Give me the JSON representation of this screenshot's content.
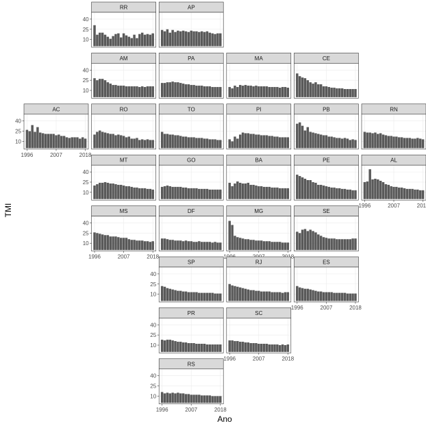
{
  "chart_data": {
    "type": "bar",
    "layout": "geo-facet grid of Brazilian states",
    "xlabel": "Ano",
    "ylabel": "TMI",
    "x_start": 1996,
    "x_end": 2018,
    "x_ticks": [
      "1996",
      "2007",
      "2018"
    ],
    "ylim": [
      0,
      48
    ],
    "y_ticks": [
      10,
      25,
      40
    ],
    "grid": true,
    "bar_color": "#595959",
    "strip_color": "#d9d9d9",
    "panels": [
      {
        "name": "RR",
        "row": 0,
        "col": 1,
        "values": [
          31,
          17,
          20,
          20,
          17,
          14,
          11,
          15,
          18,
          19,
          13,
          19,
          16,
          14,
          12,
          17,
          12,
          18,
          20,
          17,
          18,
          17,
          19
        ]
      },
      {
        "name": "AP",
        "row": 0,
        "col": 2,
        "values": [
          24,
          22,
          25,
          20,
          24,
          21,
          23,
          22,
          23,
          22,
          21,
          23,
          22,
          22,
          21,
          22,
          21,
          22,
          20,
          19,
          18,
          19,
          19
        ]
      },
      {
        "name": "AM",
        "row": 1,
        "col": 1,
        "values": [
          28,
          25,
          27,
          27,
          25,
          22,
          20,
          18,
          18,
          17,
          17,
          17,
          16,
          16,
          16,
          16,
          16,
          15,
          16,
          15,
          16,
          16,
          16
        ]
      },
      {
        "name": "PA",
        "row": 1,
        "col": 2,
        "values": [
          21,
          21,
          22,
          22,
          23,
          22,
          22,
          21,
          20,
          19,
          19,
          18,
          18,
          17,
          17,
          17,
          16,
          16,
          16,
          15,
          15,
          15,
          15
        ]
      },
      {
        "name": "MA",
        "row": 1,
        "col": 3,
        "values": [
          15,
          13,
          17,
          15,
          18,
          17,
          18,
          17,
          17,
          16,
          17,
          16,
          16,
          16,
          16,
          15,
          15,
          15,
          15,
          14,
          15,
          15,
          14
        ]
      },
      {
        "name": "CE",
        "row": 1,
        "col": 4,
        "values": [
          35,
          31,
          29,
          28,
          25,
          22,
          20,
          22,
          19,
          19,
          16,
          16,
          15,
          14,
          14,
          13,
          13,
          13,
          12,
          12,
          12,
          12,
          12
        ]
      },
      {
        "name": "AC",
        "row": 2,
        "col": 0,
        "values": [
          27,
          25,
          34,
          24,
          31,
          23,
          22,
          21,
          21,
          21,
          21,
          19,
          20,
          18,
          18,
          16,
          15,
          16,
          16,
          16,
          14,
          16,
          14
        ]
      },
      {
        "name": "RO",
        "row": 2,
        "col": 1,
        "values": [
          20,
          24,
          26,
          24,
          23,
          22,
          21,
          21,
          19,
          20,
          19,
          18,
          16,
          17,
          14,
          14,
          15,
          12,
          13,
          12,
          13,
          12,
          12
        ]
      },
      {
        "name": "TO",
        "row": 2,
        "col": 2,
        "values": [
          24,
          21,
          21,
          20,
          20,
          19,
          19,
          18,
          17,
          17,
          16,
          16,
          16,
          15,
          15,
          15,
          14,
          14,
          13,
          13,
          13,
          12,
          12
        ]
      },
      {
        "name": "PI",
        "row": 2,
        "col": 3,
        "values": [
          13,
          10,
          17,
          14,
          20,
          23,
          22,
          22,
          21,
          21,
          20,
          20,
          19,
          19,
          19,
          18,
          18,
          17,
          17,
          16,
          16,
          16,
          16
        ]
      },
      {
        "name": "PB",
        "row": 2,
        "col": 4,
        "values": [
          36,
          38,
          33,
          26,
          31,
          24,
          23,
          22,
          21,
          20,
          19,
          19,
          17,
          17,
          16,
          15,
          15,
          14,
          15,
          14,
          12,
          13,
          12
        ]
      },
      {
        "name": "RN",
        "row": 2,
        "col": 5,
        "values": [
          24,
          23,
          23,
          22,
          23,
          21,
          22,
          20,
          19,
          18,
          18,
          17,
          17,
          16,
          16,
          15,
          15,
          15,
          14,
          14,
          15,
          14,
          13
        ]
      },
      {
        "name": "MT",
        "row": 3,
        "col": 1,
        "values": [
          20,
          22,
          24,
          24,
          25,
          24,
          23,
          23,
          22,
          21,
          21,
          20,
          19,
          19,
          18,
          17,
          17,
          16,
          16,
          16,
          15,
          15,
          14
        ]
      },
      {
        "name": "GO",
        "row": 3,
        "col": 2,
        "values": [
          18,
          19,
          20,
          19,
          18,
          18,
          18,
          18,
          17,
          17,
          16,
          16,
          16,
          16,
          15,
          15,
          15,
          15,
          14,
          14,
          14,
          14,
          14
        ]
      },
      {
        "name": "BA",
        "row": 3,
        "col": 3,
        "values": [
          24,
          19,
          23,
          26,
          24,
          23,
          23,
          24,
          21,
          21,
          20,
          19,
          19,
          18,
          18,
          18,
          17,
          17,
          17,
          16,
          16,
          16,
          16
        ]
      },
      {
        "name": "PE",
        "row": 3,
        "col": 4,
        "values": [
          36,
          34,
          32,
          30,
          28,
          28,
          25,
          24,
          21,
          21,
          20,
          19,
          18,
          17,
          17,
          16,
          16,
          15,
          15,
          14,
          14,
          13,
          13
        ]
      },
      {
        "name": "AL",
        "row": 3,
        "col": 5,
        "values": [
          25,
          26,
          44,
          29,
          30,
          29,
          27,
          25,
          22,
          21,
          19,
          18,
          18,
          17,
          17,
          16,
          15,
          15,
          15,
          14,
          14,
          13,
          13
        ]
      },
      {
        "name": "MS",
        "row": 4,
        "col": 1,
        "values": [
          26,
          25,
          24,
          23,
          22,
          22,
          20,
          20,
          20,
          19,
          18,
          18,
          18,
          16,
          15,
          15,
          14,
          14,
          14,
          13,
          13,
          12,
          13
        ]
      },
      {
        "name": "DF",
        "row": 4,
        "col": 2,
        "values": [
          17,
          17,
          16,
          15,
          15,
          14,
          14,
          14,
          13,
          14,
          13,
          13,
          12,
          12,
          13,
          12,
          12,
          12,
          12,
          11,
          12,
          11,
          11
        ]
      },
      {
        "name": "MG",
        "row": 4,
        "col": 3,
        "values": [
          43,
          37,
          21,
          19,
          18,
          17,
          16,
          16,
          15,
          15,
          14,
          14,
          14,
          13,
          13,
          13,
          12,
          12,
          12,
          12,
          11,
          11,
          11
        ]
      },
      {
        "name": "SE",
        "row": 4,
        "col": 4,
        "values": [
          27,
          25,
          30,
          31,
          28,
          30,
          28,
          26,
          23,
          21,
          19,
          18,
          17,
          17,
          17,
          16,
          16,
          16,
          16,
          16,
          16,
          17,
          17
        ]
      },
      {
        "name": "SP",
        "row": 5,
        "col": 2,
        "values": [
          22,
          21,
          19,
          18,
          17,
          16,
          15,
          15,
          14,
          14,
          13,
          13,
          13,
          13,
          12,
          12,
          12,
          12,
          12,
          12,
          11,
          11,
          11
        ]
      },
      {
        "name": "RJ",
        "row": 5,
        "col": 3,
        "values": [
          25,
          23,
          22,
          21,
          20,
          19,
          18,
          17,
          16,
          16,
          15,
          15,
          14,
          14,
          14,
          14,
          13,
          13,
          13,
          13,
          12,
          13,
          13
        ]
      },
      {
        "name": "ES",
        "row": 5,
        "col": 4,
        "values": [
          22,
          20,
          19,
          18,
          18,
          17,
          16,
          15,
          14,
          14,
          13,
          13,
          13,
          13,
          12,
          12,
          12,
          12,
          12,
          11,
          11,
          11,
          11
        ]
      },
      {
        "name": "PR",
        "row": 6,
        "col": 2,
        "values": [
          18,
          17,
          18,
          18,
          17,
          16,
          15,
          15,
          14,
          14,
          13,
          13,
          13,
          12,
          12,
          12,
          12,
          11,
          11,
          11,
          11,
          11,
          11
        ]
      },
      {
        "name": "SC",
        "row": 6,
        "col": 3,
        "values": [
          17,
          17,
          16,
          16,
          15,
          15,
          14,
          14,
          13,
          13,
          13,
          12,
          12,
          12,
          12,
          11,
          11,
          11,
          11,
          10,
          11,
          10,
          11
        ]
      },
      {
        "name": "RS",
        "row": 7,
        "col": 2,
        "values": [
          16,
          14,
          15,
          14,
          15,
          14,
          15,
          14,
          14,
          13,
          13,
          12,
          12,
          12,
          12,
          11,
          11,
          11,
          11,
          10,
          10,
          10,
          10
        ]
      }
    ],
    "y_axis_panels": [
      "RR",
      "AM",
      "AC",
      "MT",
      "MS",
      "SP",
      "PR",
      "RS"
    ],
    "x_axis_panels": [
      "AC",
      "AL",
      "MS",
      "MG",
      "ES",
      "SC",
      "RS"
    ]
  }
}
